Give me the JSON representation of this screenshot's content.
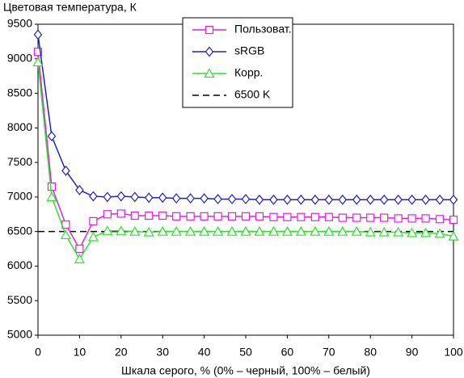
{
  "chart_data": {
    "type": "line",
    "title": "Цветовая температура, К",
    "x_label": "Шкала серого, % (0% – черный, 100% – белый)",
    "x": [
      0,
      3.3,
      6.7,
      10,
      13.3,
      16.7,
      20,
      23.3,
      26.7,
      30,
      33.3,
      36.7,
      40,
      43.3,
      46.7,
      50,
      53.3,
      56.7,
      60,
      63.3,
      66.7,
      70,
      73.3,
      76.7,
      80,
      83.3,
      86.7,
      90,
      93.3,
      96.7,
      100
    ],
    "series": [
      {
        "name": "Пользоват.",
        "color": "#e020e0",
        "marker": "square",
        "values": [
          9100,
          7150,
          6600,
          6250,
          6650,
          6750,
          6760,
          6730,
          6730,
          6730,
          6720,
          6720,
          6720,
          6720,
          6720,
          6720,
          6720,
          6710,
          6710,
          6710,
          6710,
          6710,
          6700,
          6700,
          6700,
          6700,
          6690,
          6690,
          6690,
          6680,
          6670
        ]
      },
      {
        "name": "sRGB",
        "color": "#2020c0",
        "marker": "diamond",
        "values": [
          9350,
          7880,
          7380,
          7100,
          7010,
          7000,
          7010,
          7000,
          6990,
          6990,
          6980,
          6980,
          6980,
          6970,
          6970,
          6970,
          6960,
          6960,
          6960,
          6960,
          6960,
          6960,
          6960,
          6960,
          6960,
          6960,
          6960,
          6960,
          6960,
          6960,
          6960
        ]
      },
      {
        "name": "Корр.",
        "color": "#30e030",
        "marker": "triangle",
        "values": [
          8950,
          7000,
          6450,
          6100,
          6420,
          6510,
          6510,
          6500,
          6490,
          6500,
          6500,
          6500,
          6500,
          6500,
          6500,
          6500,
          6500,
          6500,
          6500,
          6500,
          6500,
          6500,
          6500,
          6500,
          6490,
          6490,
          6490,
          6480,
          6480,
          6470,
          6430
        ]
      }
    ],
    "reference": {
      "name": "6500 K",
      "color": "#000000",
      "x": [
        0,
        100
      ],
      "values": [
        6500,
        6500
      ]
    },
    "xlim": [
      0,
      100
    ],
    "xticks": [
      0,
      10,
      20,
      30,
      40,
      50,
      60,
      70,
      80,
      90,
      100
    ],
    "ylim": [
      5000,
      9500
    ],
    "yticks": [
      5000,
      5500,
      6000,
      6500,
      7000,
      7500,
      8000,
      8500,
      9000,
      9500
    ],
    "legend": "top-center"
  }
}
